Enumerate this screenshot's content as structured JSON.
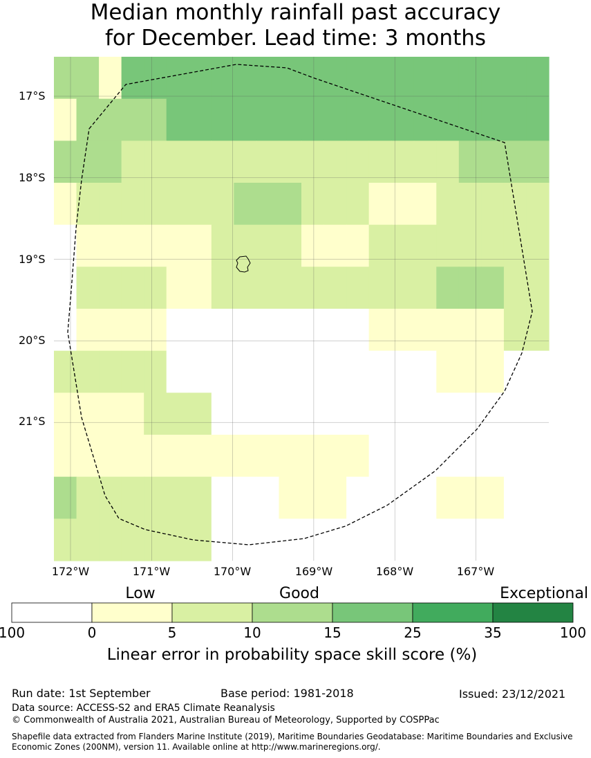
{
  "title_line1": "Median monthly rainfall past accuracy",
  "title_line2": "for December. Lead time: 3 months",
  "map": {
    "lat_labels": [
      "17°S",
      "18°S",
      "19°S",
      "20°S",
      "21°S"
    ],
    "lat_values": [
      -17,
      -18,
      -19,
      -20,
      -21
    ],
    "lon_labels": [
      "172°W",
      "171°W",
      "170°W",
      "169°W",
      "168°W",
      "167°W"
    ],
    "lon_values": [
      -172,
      -171,
      -170,
      -169,
      -168,
      -167
    ],
    "colors": [
      "#ffffff",
      "#ffffcc",
      "#d9f0a3",
      "#addd8e",
      "#78c679",
      "#41ab5d",
      "#238443"
    ],
    "rows": [
      [
        3,
        3,
        1,
        4,
        4,
        4,
        4,
        4,
        4,
        4,
        4,
        4,
        4,
        4,
        4,
        4,
        4,
        4,
        4,
        4,
        4,
        4
      ],
      [
        1,
        3,
        3,
        3,
        3,
        4,
        4,
        4,
        4,
        4,
        4,
        4,
        4,
        4,
        4,
        4,
        4,
        4,
        4,
        4,
        4,
        4
      ],
      [
        3,
        3,
        3,
        2,
        2,
        2,
        2,
        2,
        2,
        2,
        2,
        2,
        2,
        2,
        2,
        2,
        2,
        2,
        3,
        3,
        3,
        3
      ],
      [
        1,
        2,
        2,
        2,
        2,
        2,
        2,
        2,
        3,
        3,
        3,
        2,
        2,
        2,
        1,
        1,
        1,
        2,
        2,
        2,
        2,
        2
      ],
      [
        0,
        1,
        1,
        1,
        1,
        1,
        1,
        2,
        2,
        2,
        2,
        1,
        1,
        1,
        2,
        2,
        2,
        2,
        2,
        2,
        2,
        2
      ],
      [
        0,
        2,
        2,
        2,
        2,
        1,
        1,
        2,
        2,
        2,
        2,
        2,
        2,
        2,
        2,
        2,
        2,
        3,
        3,
        3,
        2,
        2
      ],
      [
        0,
        1,
        1,
        1,
        1,
        0,
        0,
        0,
        0,
        0,
        0,
        0,
        0,
        0,
        1,
        1,
        1,
        1,
        1,
        1,
        2,
        2
      ],
      [
        2,
        2,
        2,
        2,
        2,
        0,
        0,
        0,
        0,
        0,
        0,
        0,
        0,
        0,
        0,
        0,
        0,
        1,
        1,
        1,
        0,
        0
      ],
      [
        1,
        1,
        1,
        1,
        2,
        2,
        2,
        0,
        0,
        0,
        0,
        0,
        0,
        0,
        0,
        0,
        0,
        0,
        0,
        0,
        0,
        0
      ],
      [
        1,
        1,
        1,
        1,
        1,
        1,
        1,
        1,
        1,
        1,
        1,
        1,
        1,
        1,
        0,
        0,
        0,
        0,
        0,
        0,
        0,
        0
      ],
      [
        3,
        2,
        2,
        2,
        2,
        2,
        2,
        0,
        0,
        0,
        1,
        1,
        1,
        0,
        0,
        0,
        0,
        1,
        1,
        1,
        0,
        0
      ],
      [
        2,
        2,
        2,
        2,
        2,
        2,
        2,
        0,
        0,
        0,
        0,
        0,
        0,
        0,
        0,
        0,
        0,
        0,
        0,
        0,
        0,
        0
      ]
    ]
  },
  "legend": {
    "categories": [
      {
        "label": "Low"
      },
      {
        "label": "Good"
      },
      {
        "label": "Exceptional"
      }
    ],
    "colors": [
      "#ffffff",
      "#ffffcc",
      "#d9f0a3",
      "#addd8e",
      "#78c679",
      "#41ab5d",
      "#238443"
    ],
    "ticks": [
      "100",
      "0",
      "5",
      "10",
      "15",
      "25",
      "35",
      "100"
    ],
    "title": "Linear error in probability space skill score (%)"
  },
  "footer": {
    "run_date": "Run date: 1st September",
    "base_period": "Base period: 1981-2018",
    "issued": "Issued: 23/12/2021",
    "data_source": "Data source: ACCESS-S2 and ERA5 Climate Reanalysis",
    "copyright": "© Commonwealth of Australia 2021, Australian Bureau of Meteorology, Supported by COSPPac",
    "shapefile_line1": "Shapefile data extracted from Flanders Marine Institute (2019), Maritime Boundaries Geodatabase: Maritime Boundaries and Exclusive",
    "shapefile_line2": "Economic Zones (200NM), version 11. Available online at http://www.marineregions.org/."
  }
}
